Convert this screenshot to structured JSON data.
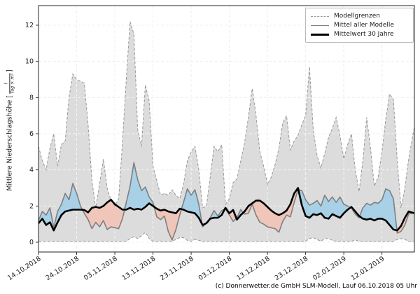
{
  "figure": {
    "footer": "(c) Donnerwetter.de GmbH SLM-Modell, Lauf 06.10.2018 05 Uhr"
  },
  "colors": {
    "band_gray": "#dcdcdc",
    "bound_line": "#999999",
    "mean_line": "#7f7f7f",
    "clim_line": "#000000",
    "above_fill_blue": "#a8d1e7",
    "below_fill_pink": "#f0c6ba",
    "grid": "#c9c9c9",
    "axis": "#262626"
  },
  "chart_data": {
    "type": "line",
    "title": "",
    "xlabel": "",
    "ylabel": "Mittlere Niederschlagshöhe [l / (Tag × m²)]",
    "ylabel_parts": {
      "prefix": "Mittlere Niederschlagshöhe [",
      "frac_num": "l",
      "frac_den": "Tag × m²",
      "suffix": "]"
    },
    "grid": "dashed",
    "ylim": [
      -0.54,
      13.08
    ],
    "yticks": [
      0,
      2,
      4,
      6,
      8,
      10,
      12
    ],
    "x_tick_days": [
      0,
      10,
      20,
      30,
      40,
      50,
      60,
      70,
      80,
      90
    ],
    "x_tick_labels": [
      "14.10.2018",
      "24.10.2018",
      "03.11.2018",
      "13.11.2018",
      "23.11.2018",
      "03.12.2018",
      "13.12.2018",
      "23.12.2018",
      "02.01.2019",
      "12.01.2019"
    ],
    "x_total_days": 98.5,
    "x_unit": "daily values, day 0 = 14.10.2018",
    "legend": {
      "position": "upper right",
      "entries": [
        {
          "label": "Modellgrenzen",
          "style": "dashed-gray"
        },
        {
          "label": "Mittel aller Modelle",
          "style": "solid-gray"
        },
        {
          "label": "Mittelwert 30 Jahre",
          "style": "solid-black-thick"
        }
      ]
    },
    "fills": [
      {
        "name": "Modellbereich",
        "between": [
          "Modellgrenze oben",
          "Modellgrenze unten"
        ],
        "color": "band_gray"
      },
      {
        "name": "Modellmittel über Klima",
        "between": [
          "Mittel aller Modelle",
          "Mittelwert 30 Jahre"
        ],
        "where": "mean>clim",
        "color": "above_fill_blue"
      },
      {
        "name": "Modellmittel unter Klima",
        "between": [
          "Mittel aller Modelle",
          "Mittelwert 30 Jahre"
        ],
        "where": "mean<clim",
        "color": "below_fill_pink"
      }
    ],
    "series": [
      {
        "name": "Modellgrenze oben",
        "role": "upper_bound",
        "style": "dashed",
        "values": [
          5.3,
          4.5,
          4.0,
          5.2,
          6.0,
          4.2,
          5.4,
          5.6,
          8.0,
          9.3,
          9.0,
          8.9,
          8.8,
          6.5,
          3.4,
          1.9,
          3.2,
          4.6,
          3.0,
          2.3,
          2.0,
          2.4,
          5.5,
          9.0,
          12.2,
          11.5,
          6.2,
          5.3,
          8.7,
          7.8,
          4.2,
          3.4,
          2.6,
          2.7,
          2.6,
          2.9,
          2.6,
          2.4,
          3.2,
          4.5,
          5.0,
          5.3,
          4.0,
          1.9,
          2.0,
          3.6,
          5.3,
          5.0,
          5.4,
          2.1,
          2.4,
          3.3,
          3.5,
          4.5,
          5.5,
          6.9,
          8.5,
          7.0,
          5.0,
          4.2,
          3.2,
          3.6,
          4.3,
          5.2,
          6.6,
          7.0,
          5.1,
          5.6,
          5.9,
          6.5,
          7.0,
          9.7,
          6.2,
          4.8,
          4.1,
          4.9,
          5.8,
          6.3,
          6.9,
          5.9,
          4.6,
          5.4,
          6.0,
          4.0,
          2.8,
          4.5,
          6.9,
          5.2,
          3.1,
          3.6,
          5.0,
          6.8,
          8.2,
          7.9,
          4.5,
          1.9,
          3.0,
          4.6,
          6.4
        ]
      },
      {
        "name": "Modellgrenze unten",
        "role": "lower_bound",
        "style": "dashed",
        "values": [
          0.05,
          0.05,
          0.05,
          0.05,
          0.05,
          0.05,
          0.05,
          0.05,
          0.05,
          0.05,
          0.05,
          0.05,
          0.05,
          0.05,
          0.05,
          0.05,
          0.05,
          0.05,
          0.05,
          0.05,
          0.05,
          0.05,
          0.05,
          0.05,
          0.2,
          0.3,
          0.2,
          0.35,
          0.55,
          0.2,
          0.05,
          0.05,
          0.05,
          0.05,
          0.05,
          0.05,
          0.15,
          0.25,
          0.25,
          0.1,
          0.05,
          0.15,
          0.1,
          0.05,
          0.05,
          0.05,
          0.05,
          0.05,
          0.05,
          0.05,
          0.05,
          0.05,
          0.05,
          0.05,
          0.05,
          0.05,
          0.05,
          0.05,
          0.05,
          0.05,
          0.05,
          0.05,
          0.05,
          0.05,
          0.05,
          0.05,
          0.05,
          0.05,
          0.05,
          0.05,
          0.05,
          0.2,
          0.25,
          0.15,
          0.05,
          0.2,
          0.2,
          0.1,
          0.05,
          0.05,
          0.05,
          0.05,
          0.05,
          0.12,
          0.05,
          0.05,
          0.05,
          0.05,
          0.05,
          0.05,
          0.05,
          0.05,
          0.05,
          0.05,
          0.15,
          0.2,
          0.15,
          0.05,
          0.05
        ]
      },
      {
        "name": "Mittel aller Modelle",
        "role": "mean",
        "style": "solid-gray",
        "values": [
          1.2,
          1.7,
          1.5,
          1.9,
          0.8,
          1.7,
          2.1,
          2.7,
          2.35,
          3.25,
          2.7,
          2.0,
          1.6,
          1.25,
          0.75,
          1.1,
          0.85,
          1.2,
          0.7,
          0.85,
          0.8,
          0.75,
          1.3,
          2.2,
          3.1,
          4.4,
          3.45,
          2.85,
          3.05,
          2.5,
          2.2,
          1.4,
          1.25,
          1.45,
          0.6,
          0.12,
          0.7,
          1.5,
          2.2,
          2.95,
          2.6,
          2.9,
          2.1,
          0.85,
          1.05,
          1.35,
          1.75,
          1.45,
          1.75,
          1.85,
          1.5,
          1.15,
          1.35,
          1.8,
          1.55,
          1.6,
          2.1,
          1.5,
          1.1,
          1.0,
          0.85,
          0.8,
          0.75,
          0.55,
          1.15,
          1.5,
          1.4,
          2.2,
          2.9,
          2.85,
          2.35,
          2.05,
          2.15,
          2.3,
          2.0,
          2.6,
          2.25,
          2.5,
          2.2,
          2.5,
          2.1,
          2.0,
          1.9,
          1.55,
          1.35,
          1.9,
          2.15,
          2.05,
          2.2,
          2.15,
          2.35,
          2.95,
          2.85,
          2.4,
          0.5,
          0.6,
          0.95,
          1.55,
          1.65
        ]
      },
      {
        "name": "Mittelwert 30 Jahre",
        "role": "climatology",
        "style": "solid-black-thick",
        "values": [
          1.05,
          1.3,
          0.95,
          1.1,
          0.65,
          1.1,
          1.5,
          1.7,
          1.75,
          1.8,
          1.8,
          1.8,
          1.78,
          1.65,
          1.9,
          1.95,
          1.9,
          2.0,
          2.2,
          2.35,
          2.1,
          1.95,
          1.8,
          1.8,
          1.9,
          1.8,
          1.85,
          1.8,
          1.95,
          2.15,
          2.0,
          1.85,
          1.75,
          1.8,
          1.7,
          1.65,
          1.6,
          1.85,
          1.8,
          1.7,
          1.65,
          1.6,
          1.35,
          0.95,
          1.05,
          1.3,
          1.35,
          1.35,
          1.5,
          1.9,
          1.6,
          1.78,
          1.25,
          1.5,
          1.7,
          2.0,
          2.15,
          2.3,
          2.3,
          2.15,
          1.95,
          1.75,
          1.6,
          1.5,
          1.6,
          1.75,
          2.1,
          2.7,
          3.0,
          2.05,
          1.45,
          1.35,
          1.55,
          1.5,
          1.6,
          1.35,
          1.3,
          1.55,
          1.45,
          1.35,
          1.6,
          1.8,
          1.95,
          1.7,
          1.45,
          1.3,
          1.25,
          1.3,
          1.2,
          1.3,
          1.3,
          1.2,
          0.95,
          0.7,
          0.65,
          0.9,
          1.35,
          1.7,
          1.6
        ]
      }
    ]
  }
}
